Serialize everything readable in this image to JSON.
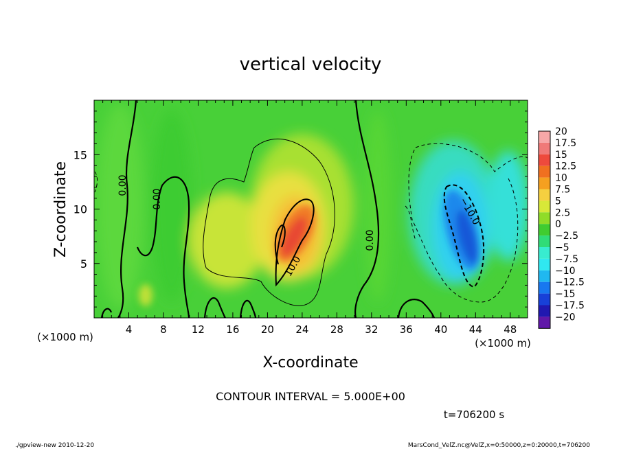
{
  "chart_data": {
    "type": "heatmap",
    "title": "vertical velocity",
    "xlabel": "X-coordinate",
    "ylabel": "Z-coordinate",
    "x_unit_label": "(×1000 m)",
    "y_unit_label": "(×1000 m)",
    "xlim": [
      0,
      50
    ],
    "ylim": [
      0,
      20
    ],
    "x_ticks": [
      4,
      8,
      12,
      16,
      20,
      24,
      28,
      32,
      36,
      40,
      44,
      48
    ],
    "y_ticks": [
      5,
      10,
      15
    ],
    "colorbar": {
      "labels": [
        "20",
        "17.5",
        "15",
        "12.5",
        "10",
        "7.5",
        "5",
        "2.5",
        "0",
        "−2.5",
        "−5",
        "−7.5",
        "−10",
        "−12.5",
        "−15",
        "−17.5",
        "−20"
      ],
      "colors": [
        "#f7a8a8",
        "#f07a78",
        "#ee4a3c",
        "#f07020",
        "#f5a020",
        "#f5d040",
        "#d8e838",
        "#90dc28",
        "#40cc30",
        "#30dc78",
        "#38ecd0",
        "#30e8f0",
        "#20b8f0",
        "#1878f0",
        "#1840d8",
        "#2018b0",
        "#6018a8"
      ]
    },
    "contour_interval_text": "CONTOUR INTERVAL = 5.000E+00",
    "contour_labels": [
      "0.00",
      "0.00",
      "0.00",
      "10.0",
      "−10.0"
    ],
    "features": [
      {
        "kind": "updraft",
        "x": 23,
        "z": 7.5,
        "value": 15
      },
      {
        "kind": "downdraft",
        "x": 42.5,
        "z": 7.5,
        "value": -12
      }
    ],
    "time_text": "t=706200 s",
    "footer_left": "./gpview-new  2010-12-20",
    "footer_right": "MarsCond_VelZ.nc@VelZ,x=0:50000,z=0:20000,t=706200"
  }
}
